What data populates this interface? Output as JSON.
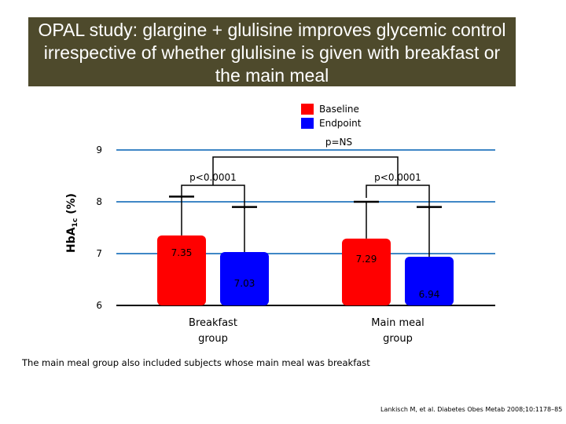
{
  "title": "OPAL study: glargine + glulisine improves glycemic control irrespective of whether glulisine is given with breakfast or the main meal",
  "colors": {
    "banner": "#4e4a2c",
    "baseline": "#ff0000",
    "endpoint": "#0000ff",
    "gridline": "#3f87c6"
  },
  "chart_data": {
    "type": "bar",
    "ylabel_main": "HbA",
    "ylabel_sub": "1c",
    "ylabel_unit": " (%)",
    "ylim": [
      6,
      9
    ],
    "yticks": [
      6,
      7,
      8,
      9
    ],
    "categories": [
      [
        "Breakfast",
        "group"
      ],
      [
        "Main meal",
        "group"
      ]
    ],
    "series": [
      {
        "name": "Baseline",
        "values": [
          7.35,
          7.29
        ],
        "labels": [
          "7.35",
          "7.29"
        ],
        "error_top": [
          8.1,
          8.0
        ]
      },
      {
        "name": "Endpoint",
        "values": [
          7.03,
          6.94
        ],
        "labels": [
          "7.03",
          "6.94"
        ],
        "error_top": [
          7.9,
          7.9
        ]
      }
    ],
    "legend_position": "top-right",
    "annotations": {
      "within_group": [
        "p<0.0001",
        "p<0.0001"
      ],
      "between_groups": "p=NS"
    }
  },
  "footnote": "The main meal group also included subjects whose main meal was breakfast",
  "citation": "Lankisch M, et al. Diabetes Obes Metab 2008;10:1178–85"
}
